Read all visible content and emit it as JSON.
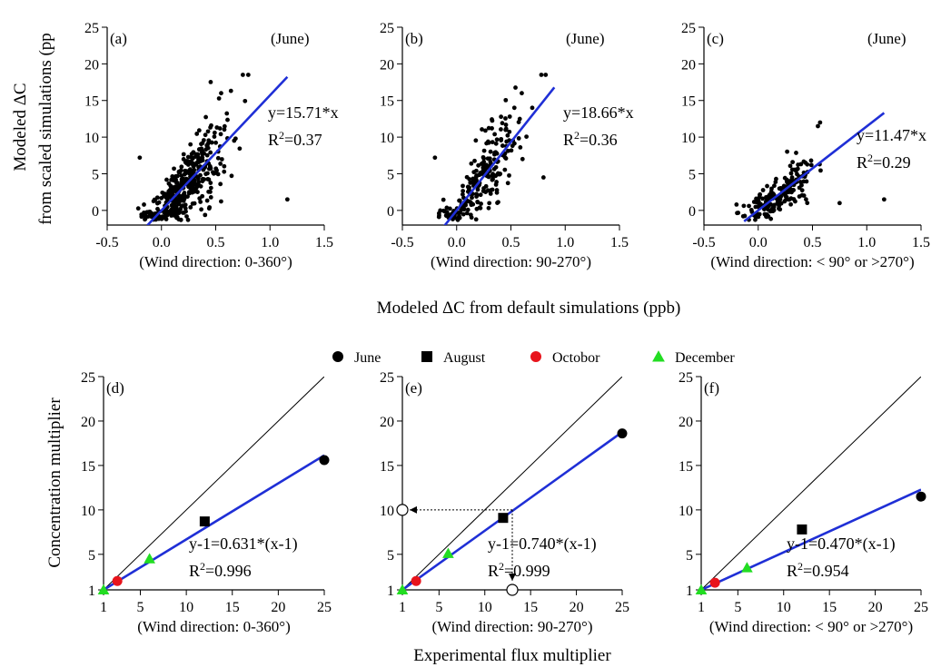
{
  "figure": {
    "top_ylabel_line1": "Modeled ΔC",
    "top_ylabel_line2": "from scaled simulations (pp",
    "top_xlabel": "Modeled ΔC from default simulations (ppb)",
    "bottom_ylabel": "Concentration multiplier",
    "bottom_xlabel": "Experimental flux multiplier",
    "legend": [
      {
        "label": "June",
        "marker": "circle",
        "color": "#000000"
      },
      {
        "label": "August",
        "marker": "square",
        "color": "#000000"
      },
      {
        "label": "Octobor",
        "marker": "circle",
        "color": "#e8141c"
      },
      {
        "label": "December",
        "marker": "triangle",
        "color": "#22dd22"
      }
    ]
  },
  "chart_data": [
    {
      "type": "scatter",
      "panel": "(a)",
      "month": "(June)",
      "subtitle": "(Wind direction: 0-360°)",
      "xlim": [
        -0.5,
        1.5
      ],
      "ylim": [
        -2,
        25
      ],
      "xticks": [
        "-0.5",
        "0.0",
        "0.5",
        "1.0",
        "1.5"
      ],
      "yticks": [
        "0",
        "5",
        "10",
        "15",
        "20",
        "25"
      ],
      "fit": {
        "equation": "y=15.71*x",
        "r2": "0.37",
        "slope": 15.71,
        "x_range": [
          -0.13,
          1.16
        ]
      },
      "point_count": 400,
      "point_spread": {
        "x_center": 0.22,
        "x_sd": 0.18,
        "noise_sd": 2.8
      },
      "seed": 11,
      "extra_points": [
        [
          0.75,
          18.5
        ],
        [
          0.8,
          18.5
        ],
        [
          1.16,
          1.5
        ],
        [
          -0.2,
          7.2
        ],
        [
          0.55,
          16
        ]
      ]
    },
    {
      "type": "scatter",
      "panel": "(b)",
      "month": "(June)",
      "subtitle": "(Wind direction: 90-270°)",
      "xlim": [
        -0.5,
        1.5
      ],
      "ylim": [
        -2,
        25
      ],
      "xticks": [
        "-0.5",
        "0.0",
        "0.5",
        "1.0",
        "1.5"
      ],
      "yticks": [
        "0",
        "5",
        "10",
        "15",
        "20",
        "25"
      ],
      "fit": {
        "equation": "y=18.66*x",
        "r2": "0.36",
        "slope": 18.66,
        "x_range": [
          -0.13,
          0.9
        ]
      },
      "point_count": 230,
      "point_spread": {
        "x_center": 0.24,
        "x_sd": 0.16,
        "noise_sd": 2.8
      },
      "seed": 23,
      "extra_points": [
        [
          0.78,
          18.5
        ],
        [
          0.82,
          18.5
        ],
        [
          -0.2,
          7.2
        ],
        [
          0.6,
          16
        ],
        [
          0.8,
          4.5
        ]
      ]
    },
    {
      "type": "scatter",
      "panel": "(c)",
      "month": "(June)",
      "subtitle": "(Wind direction: < 90° or >270°)",
      "xlim": [
        -0.5,
        1.5
      ],
      "ylim": [
        -2,
        25
      ],
      "xticks": [
        "-0.5",
        "0.0",
        "0.5",
        "1.0",
        "1.5"
      ],
      "yticks": [
        "0",
        "5",
        "10",
        "15",
        "20",
        "25"
      ],
      "fit": {
        "equation": "y=11.47*x",
        "r2": "0.29",
        "slope": 11.47,
        "x_range": [
          -0.13,
          1.16
        ]
      },
      "point_count": 180,
      "point_spread": {
        "x_center": 0.18,
        "x_sd": 0.15,
        "noise_sd": 2.0
      },
      "seed": 37,
      "extra_points": [
        [
          0.57,
          12
        ],
        [
          0.55,
          11.5
        ],
        [
          1.16,
          1.5
        ],
        [
          0.75,
          1
        ],
        [
          -0.2,
          0.8
        ]
      ]
    },
    {
      "type": "scatter",
      "panel": "(d)",
      "subtitle": "(Wind direction: 0-360°)",
      "xlim": [
        1,
        25
      ],
      "ylim": [
        1,
        25
      ],
      "xticks": [
        "1",
        "5",
        "10",
        "15",
        "20",
        "25"
      ],
      "yticks": [
        "1",
        "5",
        "10",
        "15",
        "20",
        "25"
      ],
      "fit": {
        "equation": "y-1=0.631*(x-1)",
        "r2": "0.996",
        "slope": 0.631
      },
      "points": [
        {
          "x": 1,
          "y": 1,
          "series": "December"
        },
        {
          "x": 2.5,
          "y": 2,
          "series": "Octobor"
        },
        {
          "x": 6,
          "y": 4.5,
          "series": "December"
        },
        {
          "x": 12,
          "y": 8.7,
          "series": "August"
        },
        {
          "x": 25,
          "y": 15.6,
          "series": "June"
        }
      ]
    },
    {
      "type": "scatter",
      "panel": "(e)",
      "subtitle": "(Wind direction: 90-270°)",
      "xlim": [
        1,
        25
      ],
      "ylim": [
        1,
        25
      ],
      "xticks": [
        "1",
        "5",
        "10",
        "15",
        "20",
        "25"
      ],
      "yticks": [
        "1",
        "5",
        "10",
        "15",
        "20",
        "25"
      ],
      "fit": {
        "equation": "y-1=0.740*(x-1)",
        "r2": "0.999",
        "slope": 0.74
      },
      "points": [
        {
          "x": 1,
          "y": 1,
          "series": "December"
        },
        {
          "x": 2.5,
          "y": 2,
          "series": "Octobor"
        },
        {
          "x": 6,
          "y": 5.1,
          "series": "December"
        },
        {
          "x": 12,
          "y": 9.1,
          "series": "August"
        },
        {
          "x": 25,
          "y": 18.6,
          "series": "June"
        }
      ],
      "guide": {
        "x": 13,
        "y": 10
      }
    },
    {
      "type": "scatter",
      "panel": "(f)",
      "subtitle": "(Wind direction: < 90° or >270°)",
      "xlim": [
        1,
        25
      ],
      "ylim": [
        1,
        25
      ],
      "xticks": [
        "1",
        "5",
        "10",
        "15",
        "20",
        "25"
      ],
      "yticks": [
        "1",
        "5",
        "10",
        "15",
        "20",
        "25"
      ],
      "fit": {
        "equation": "y-1=0.470*(x-1)",
        "r2": "0.954",
        "slope": 0.47
      },
      "points": [
        {
          "x": 1,
          "y": 1,
          "series": "December"
        },
        {
          "x": 2.5,
          "y": 1.8,
          "series": "Octobor"
        },
        {
          "x": 6,
          "y": 3.5,
          "series": "December"
        },
        {
          "x": 12,
          "y": 7.8,
          "series": "August"
        },
        {
          "x": 25,
          "y": 11.5,
          "series": "June"
        }
      ]
    }
  ]
}
